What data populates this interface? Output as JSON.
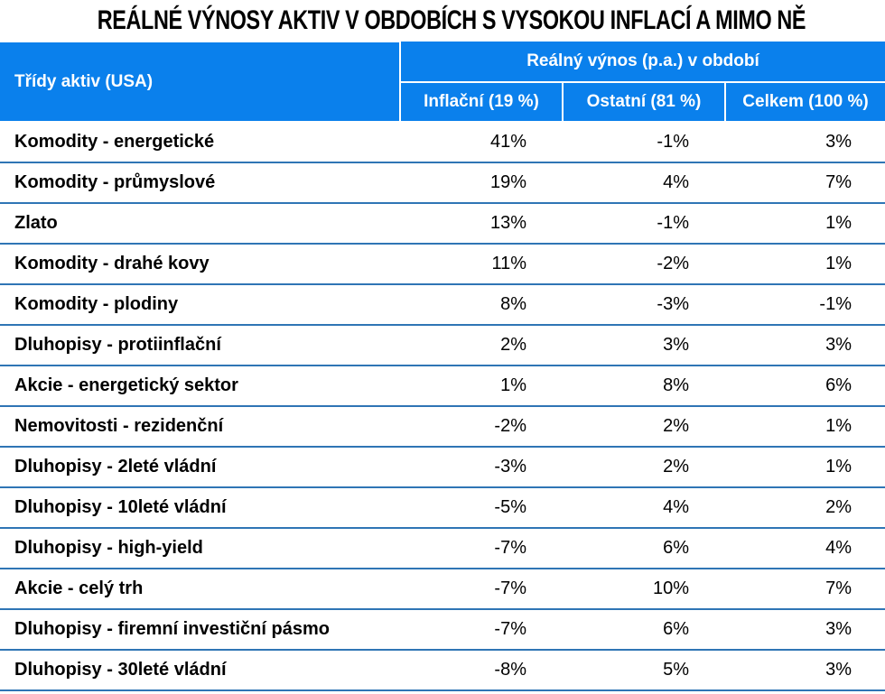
{
  "title": "REÁLNÉ VÝNOSY AKTIV V OBDOBÍCH S VYSOKOU INFLACÍ A MIMO NĚ",
  "header": {
    "asset_class": "Třídy aktiv (USA)",
    "group": "Reálný výnos (p.a.) v období",
    "columns": [
      "Inflační (19 %)",
      "Ostatní (81 %)",
      "Celkem (100 %)"
    ]
  },
  "colors": {
    "header_bg": "#0a80ec",
    "header_text": "#ffffff",
    "row_divider": "#2f75b5"
  },
  "rows": [
    {
      "asset": "Komodity - energetické",
      "inflation": "41%",
      "other": "-1%",
      "total": "3%"
    },
    {
      "asset": "Komodity - průmyslové",
      "inflation": "19%",
      "other": "4%",
      "total": "7%"
    },
    {
      "asset": "Zlato",
      "inflation": "13%",
      "other": "-1%",
      "total": "1%"
    },
    {
      "asset": "Komodity - drahé kovy",
      "inflation": "11%",
      "other": "-2%",
      "total": "1%"
    },
    {
      "asset": "Komodity - plodiny",
      "inflation": "8%",
      "other": "-3%",
      "total": "-1%"
    },
    {
      "asset": "Dluhopisy - protiinflační",
      "inflation": "2%",
      "other": "3%",
      "total": "3%"
    },
    {
      "asset": "Akcie - energetický sektor",
      "inflation": "1%",
      "other": "8%",
      "total": "6%"
    },
    {
      "asset": "Nemovitosti - rezidenční",
      "inflation": "-2%",
      "other": "2%",
      "total": "1%"
    },
    {
      "asset": "Dluhopisy - 2leté vládní",
      "inflation": "-3%",
      "other": "2%",
      "total": "1%"
    },
    {
      "asset": "Dluhopisy - 10leté vládní",
      "inflation": "-5%",
      "other": "4%",
      "total": "2%"
    },
    {
      "asset": "Dluhopisy - high-yield",
      "inflation": "-7%",
      "other": "6%",
      "total": "4%"
    },
    {
      "asset": "Akcie - celý trh",
      "inflation": "-7%",
      "other": "10%",
      "total": "7%"
    },
    {
      "asset": "Dluhopisy - firemní investiční pásmo",
      "inflation": "-7%",
      "other": "6%",
      "total": "3%"
    },
    {
      "asset": "Dluhopisy - 30leté vládní",
      "inflation": "-8%",
      "other": "5%",
      "total": "3%"
    }
  ]
}
